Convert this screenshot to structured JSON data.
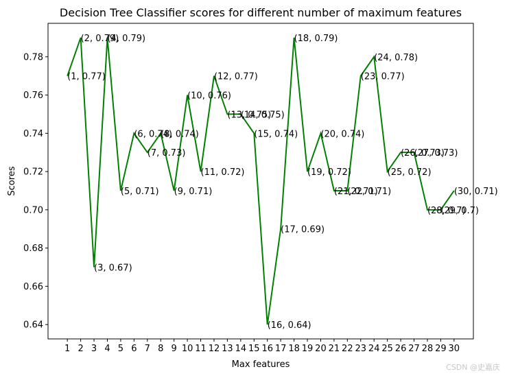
{
  "chart_data": {
    "type": "line",
    "title": "Decision Tree Classifier scores for different number of maximum features",
    "xlabel": "Max features",
    "ylabel": "Scores",
    "x": [
      1,
      2,
      3,
      4,
      5,
      6,
      7,
      8,
      9,
      10,
      11,
      12,
      13,
      14,
      15,
      16,
      17,
      18,
      19,
      20,
      21,
      22,
      23,
      24,
      25,
      26,
      27,
      28,
      29,
      30
    ],
    "y": [
      0.77,
      0.79,
      0.67,
      0.79,
      0.71,
      0.74,
      0.73,
      0.74,
      0.71,
      0.76,
      0.72,
      0.77,
      0.75,
      0.75,
      0.74,
      0.64,
      0.69,
      0.79,
      0.72,
      0.74,
      0.71,
      0.71,
      0.77,
      0.78,
      0.72,
      0.73,
      0.73,
      0.7,
      0.7,
      0.71
    ],
    "point_labels": [
      "(1, 0.77)",
      "(2, 0.79)",
      "(3, 0.67)",
      "(4, 0.79)",
      "(5, 0.71)",
      "(6, 0.74)",
      "(7, 0.73)",
      "(8, 0.74)",
      "(9, 0.71)",
      "(10, 0.76)",
      "(11, 0.72)",
      "(12, 0.77)",
      "(13, 0.75)",
      "(14, 0.75)",
      "(15, 0.74)",
      "(16, 0.64)",
      "(17, 0.69)",
      "(18, 0.79)",
      "(19, 0.72)",
      "(20, 0.74)",
      "(21, 0.71)",
      "(22, 0.71)",
      "(23, 0.77)",
      "(24, 0.78)",
      "(25, 0.72)",
      "(26, 0.73)",
      "(27, 0.73)",
      "(28, 0.7)",
      "(29, 0.7)",
      "(30, 0.71)"
    ],
    "xticks": [
      1,
      2,
      3,
      4,
      5,
      6,
      7,
      8,
      9,
      10,
      11,
      12,
      13,
      14,
      15,
      16,
      17,
      18,
      19,
      20,
      21,
      22,
      23,
      24,
      25,
      26,
      27,
      28,
      29,
      30
    ],
    "xtick_labels": [
      "1",
      "2",
      "3",
      "4",
      "5",
      "6",
      "7",
      "8",
      "9",
      "10",
      "11",
      "12",
      "13",
      "14",
      "15",
      "16",
      "17",
      "18",
      "19",
      "20",
      "21",
      "22",
      "23",
      "24",
      "25",
      "26",
      "27",
      "28",
      "29",
      "30"
    ],
    "yticks": [
      0.64,
      0.66,
      0.68,
      0.7,
      0.72,
      0.74,
      0.76,
      0.78
    ],
    "ytick_labels": [
      "0.64",
      "0.66",
      "0.68",
      "0.70",
      "0.72",
      "0.74",
      "0.76",
      "0.78"
    ],
    "xlim": [
      -0.45,
      31.45
    ],
    "ylim": [
      0.6325,
      0.7975
    ],
    "line_color": "#008000",
    "grid": false,
    "legend": "none"
  },
  "watermark": "CSDN @史嘉庆"
}
